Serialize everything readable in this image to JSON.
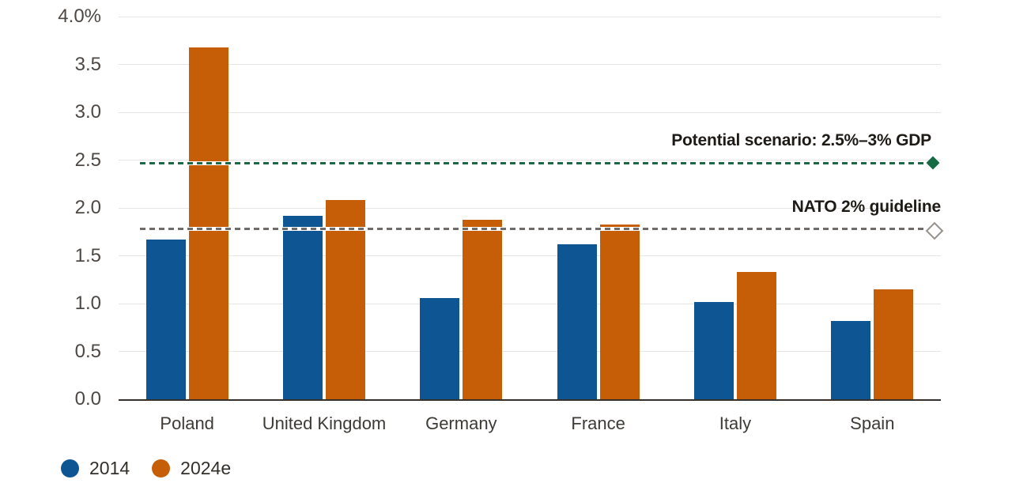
{
  "chart_data": {
    "type": "bar",
    "title": "",
    "units": "% of GDP",
    "categories": [
      "Poland",
      "United Kingdom",
      "Germany",
      "France",
      "Italy",
      "Spain"
    ],
    "series": [
      {
        "name": "2014",
        "color": "#0E5693",
        "values": [
          1.67,
          1.92,
          1.06,
          1.62,
          1.02,
          0.82
        ]
      },
      {
        "name": "2024e",
        "color": "#C65D07",
        "values": [
          3.68,
          2.08,
          1.88,
          1.83,
          1.33,
          1.15
        ]
      }
    ],
    "ylim": [
      0,
      4
    ],
    "yticks": [
      {
        "value": 4.0,
        "label": "4.0%"
      },
      {
        "value": 3.5,
        "label": "3.5"
      },
      {
        "value": 3.0,
        "label": "3.0"
      },
      {
        "value": 2.5,
        "label": "2.5"
      },
      {
        "value": 2.0,
        "label": "2.0"
      },
      {
        "value": 1.5,
        "label": "1.5"
      },
      {
        "value": 1.0,
        "label": "1.0"
      },
      {
        "value": 0.5,
        "label": "0.5"
      },
      {
        "value": 0.0,
        "label": "0.0"
      }
    ],
    "grid": "horizontal",
    "legend_position": "bottom-left",
    "reference_lines": [
      {
        "label": "Potential scenario: 2.5%–3% GDP",
        "value": 2.47,
        "color": "#166B45",
        "line_style": "dashed",
        "marker": "filled-diamond"
      },
      {
        "label": "NATO 2% guideline",
        "value": 1.78,
        "color": "#6E6B68",
        "line_style": "dashed",
        "marker": "open-diamond"
      }
    ]
  }
}
